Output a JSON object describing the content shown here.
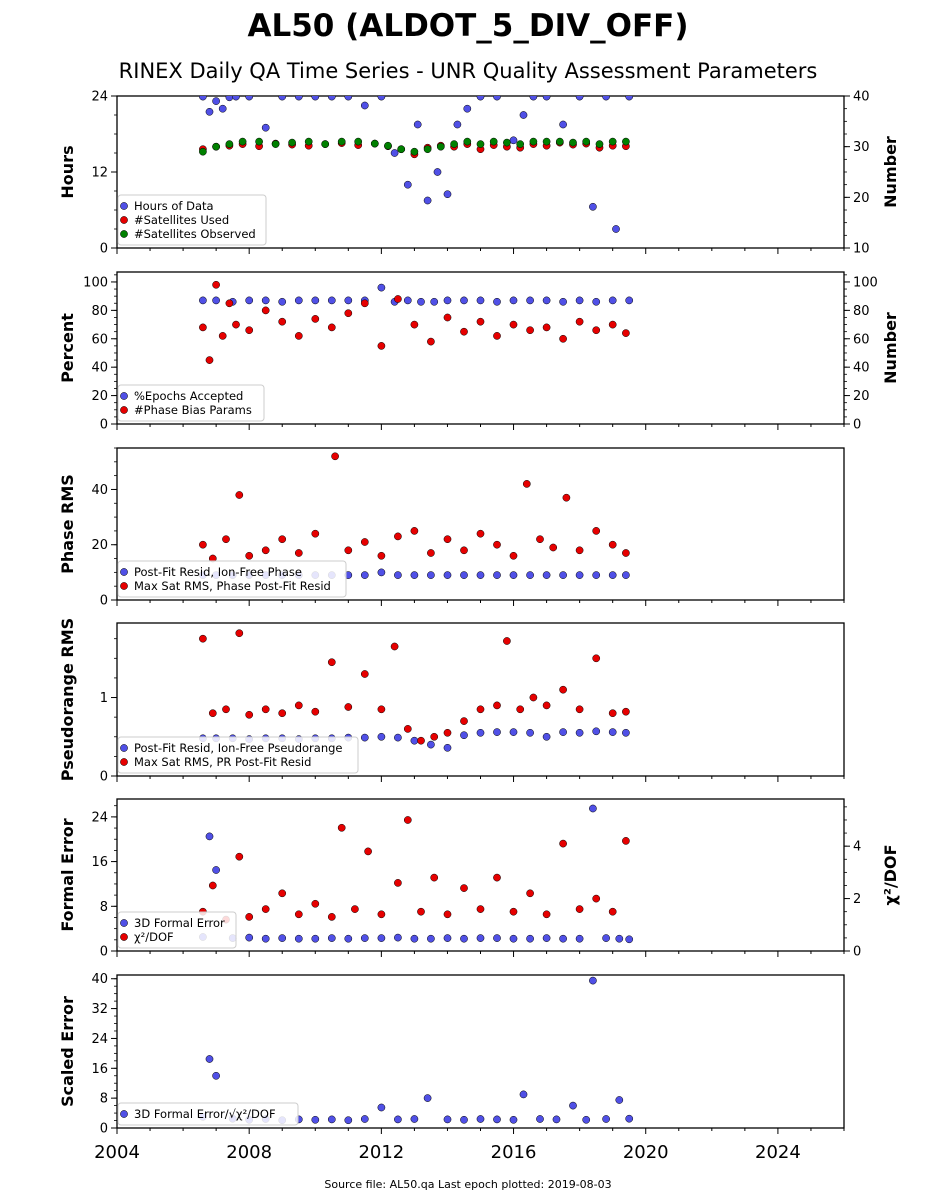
{
  "title": "AL50 (ALDOT_5_DIV_OFF)",
  "subtitle": "RINEX Daily QA Time Series - UNR Quality Assessment Parameters",
  "footer": "Source file: AL50.qa Last epoch plotted: 2019-08-03",
  "colors": {
    "blue": "#5050e6",
    "red": "#e60000",
    "green": "#008000"
  },
  "chart_data": [
    {
      "type": "scatter",
      "xlim": [
        2004.0,
        2026.0
      ],
      "xticks": [
        "2004",
        "2008",
        "2012",
        "2016",
        "2020",
        "2024"
      ],
      "ylabel": "Hours",
      "ylim": [
        0,
        24
      ],
      "yticks": [
        "0",
        "12",
        "24"
      ],
      "ylabel2": "Number",
      "ylim2": [
        10,
        40
      ],
      "yticks2": [
        "10",
        "20",
        "30",
        "40"
      ],
      "legend_placement": "lower-left",
      "series": [
        {
          "name": "Hours of Data",
          "color": "blue",
          "axis": "left",
          "x": [
            2006.6,
            2006.8,
            2007.0,
            2007.2,
            2007.4,
            2007.6,
            2008.0,
            2008.5,
            2009.0,
            2009.5,
            2010.0,
            2010.5,
            2011.0,
            2011.5,
            2012.0,
            2012.4,
            2012.8,
            2013.1,
            2013.4,
            2013.7,
            2014.0,
            2014.3,
            2014.6,
            2015.0,
            2015.5,
            2016.0,
            2016.3,
            2016.6,
            2017.0,
            2017.5,
            2018.0,
            2018.4,
            2018.8,
            2019.1,
            2019.5
          ],
          "y": [
            23.9,
            21.5,
            23.2,
            22.0,
            23.8,
            23.9,
            23.9,
            19.0,
            23.9,
            23.9,
            23.9,
            23.9,
            23.9,
            22.5,
            23.9,
            15.0,
            10.0,
            19.5,
            7.5,
            12.0,
            8.5,
            19.5,
            22.0,
            23.9,
            23.9,
            17.0,
            21.0,
            23.9,
            23.9,
            19.5,
            23.9,
            6.5,
            23.9,
            3.0,
            23.9
          ]
        },
        {
          "name": "#Satellites Used",
          "color": "red",
          "axis": "right",
          "x": [
            2006.6,
            2007.0,
            2007.4,
            2007.8,
            2008.3,
            2008.8,
            2009.3,
            2009.8,
            2010.3,
            2010.8,
            2011.3,
            2011.8,
            2012.2,
            2012.6,
            2013.0,
            2013.4,
            2013.8,
            2014.2,
            2014.6,
            2015.0,
            2015.4,
            2015.8,
            2016.2,
            2016.6,
            2017.0,
            2017.4,
            2017.8,
            2018.2,
            2018.6,
            2019.0,
            2019.4
          ],
          "y": [
            29.5,
            30.0,
            30.2,
            30.5,
            30.1,
            30.6,
            30.4,
            30.2,
            30.5,
            30.7,
            30.3,
            30.6,
            30.1,
            29.5,
            28.5,
            29.8,
            30.2,
            30.0,
            30.5,
            29.5,
            30.3,
            30.0,
            29.8,
            30.5,
            30.2,
            30.8,
            30.4,
            30.6,
            29.8,
            30.2,
            30.1
          ]
        },
        {
          "name": "#Satellites Observed",
          "color": "green",
          "axis": "right",
          "x": [
            2006.6,
            2007.0,
            2007.4,
            2007.8,
            2008.3,
            2008.8,
            2009.3,
            2009.8,
            2010.3,
            2010.8,
            2011.3,
            2011.8,
            2012.2,
            2012.6,
            2013.0,
            2013.4,
            2013.8,
            2014.2,
            2014.6,
            2015.0,
            2015.4,
            2015.8,
            2016.2,
            2016.6,
            2017.0,
            2017.4,
            2017.8,
            2018.2,
            2018.6,
            2019.0,
            2019.4
          ],
          "y": [
            29.0,
            30.0,
            30.5,
            31.0,
            31.0,
            30.5,
            30.8,
            31.0,
            30.5,
            31.0,
            31.0,
            30.6,
            30.2,
            29.5,
            29.0,
            29.5,
            30.0,
            30.5,
            31.0,
            30.5,
            31.0,
            30.8,
            30.5,
            31.0,
            31.0,
            31.0,
            30.8,
            31.0,
            30.5,
            31.0,
            31.0
          ]
        }
      ]
    },
    {
      "type": "scatter",
      "xlim": [
        2004.0,
        2026.0
      ],
      "ylabel": "Percent",
      "ylim": [
        0,
        107
      ],
      "yticks": [
        "0",
        "20",
        "40",
        "60",
        "80",
        "100"
      ],
      "ylabel2": "Number",
      "ylim2": [
        0,
        107
      ],
      "yticks2": [
        "0",
        "20",
        "40",
        "60",
        "80",
        "100"
      ],
      "legend_placement": "lower-left",
      "series": [
        {
          "name": "%Epochs Accepted",
          "color": "blue",
          "axis": "left",
          "x": [
            2006.6,
            2007.0,
            2007.5,
            2008.0,
            2008.5,
            2009.0,
            2009.5,
            2010.0,
            2010.5,
            2011.0,
            2011.5,
            2012.0,
            2012.4,
            2012.8,
            2013.2,
            2013.6,
            2014.0,
            2014.5,
            2015.0,
            2015.5,
            2016.0,
            2016.5,
            2017.0,
            2017.5,
            2018.0,
            2018.5,
            2019.0,
            2019.5
          ],
          "y": [
            87,
            87,
            86,
            87,
            87,
            86,
            87,
            87,
            87,
            87,
            87,
            96,
            86,
            87,
            86,
            86,
            87,
            87,
            87,
            86,
            87,
            87,
            87,
            86,
            87,
            86,
            87,
            87
          ]
        },
        {
          "name": "#Phase Bias Params",
          "color": "red",
          "axis": "right",
          "x": [
            2006.6,
            2006.8,
            2007.0,
            2007.2,
            2007.4,
            2007.6,
            2008.0,
            2008.5,
            2009.0,
            2009.5,
            2010.0,
            2010.5,
            2011.0,
            2011.5,
            2012.0,
            2012.5,
            2013.0,
            2013.5,
            2014.0,
            2014.5,
            2015.0,
            2015.5,
            2016.0,
            2016.5,
            2017.0,
            2017.5,
            2018.0,
            2018.5,
            2019.0,
            2019.4
          ],
          "y": [
            68,
            45,
            98,
            62,
            85,
            70,
            66,
            80,
            72,
            62,
            74,
            68,
            78,
            85,
            55,
            88,
            70,
            58,
            75,
            65,
            72,
            62,
            70,
            66,
            68,
            60,
            72,
            66,
            70,
            64
          ]
        }
      ]
    },
    {
      "type": "scatter",
      "xlim": [
        2004.0,
        2026.0
      ],
      "ylabel": "Phase RMS",
      "ylim": [
        0,
        55
      ],
      "yticks": [
        "0",
        "20",
        "40"
      ],
      "legend_placement": "lower-left",
      "series": [
        {
          "name": "Post-Fit Resid, Ion-Free Phase",
          "color": "blue",
          "axis": "left",
          "x": [
            2006.6,
            2007.0,
            2007.5,
            2008.0,
            2008.5,
            2009.0,
            2009.5,
            2010.0,
            2010.5,
            2011.0,
            2011.5,
            2012.0,
            2012.5,
            2013.0,
            2013.5,
            2014.0,
            2014.5,
            2015.0,
            2015.5,
            2016.0,
            2016.5,
            2017.0,
            2017.5,
            2018.0,
            2018.5,
            2019.0,
            2019.4
          ],
          "y": [
            9,
            9,
            9,
            9,
            9,
            9,
            9,
            9,
            9,
            9,
            9,
            10,
            9,
            9,
            9,
            9,
            9,
            9,
            9,
            9,
            9,
            9,
            9,
            9,
            9,
            9,
            9
          ]
        },
        {
          "name": "Max Sat RMS, Phase Post-Fit Resid",
          "color": "red",
          "axis": "left",
          "x": [
            2006.6,
            2006.9,
            2007.3,
            2007.7,
            2008.0,
            2008.5,
            2009.0,
            2009.5,
            2010.0,
            2010.6,
            2011.0,
            2011.5,
            2012.0,
            2012.5,
            2013.0,
            2013.5,
            2014.0,
            2014.5,
            2015.0,
            2015.5,
            2016.0,
            2016.4,
            2016.8,
            2017.2,
            2017.6,
            2018.0,
            2018.5,
            2019.0,
            2019.4
          ],
          "y": [
            20,
            15,
            22,
            38,
            16,
            18,
            22,
            17,
            24,
            52,
            18,
            21,
            16,
            23,
            25,
            17,
            22,
            18,
            24,
            20,
            16,
            42,
            22,
            19,
            37,
            18,
            25,
            20,
            17
          ]
        }
      ]
    },
    {
      "type": "scatter",
      "xlim": [
        2004.0,
        2026.0
      ],
      "ylabel": "Pseudorange RMS",
      "ylim": [
        0,
        1.95
      ],
      "yticks": [
        "0",
        "1"
      ],
      "legend_placement": "lower-left",
      "series": [
        {
          "name": "Post-Fit Resid, Ion-Free Pseudorange",
          "color": "blue",
          "axis": "left",
          "x": [
            2006.6,
            2007.0,
            2007.5,
            2008.0,
            2008.5,
            2009.0,
            2009.5,
            2010.0,
            2010.5,
            2011.0,
            2011.5,
            2012.0,
            2012.5,
            2013.0,
            2013.5,
            2014.0,
            2014.5,
            2015.0,
            2015.5,
            2016.0,
            2016.5,
            2017.0,
            2017.5,
            2018.0,
            2018.5,
            2019.0,
            2019.4
          ],
          "y": [
            0.48,
            0.48,
            0.48,
            0.47,
            0.48,
            0.48,
            0.47,
            0.48,
            0.48,
            0.49,
            0.49,
            0.5,
            0.49,
            0.45,
            0.4,
            0.36,
            0.52,
            0.55,
            0.56,
            0.56,
            0.55,
            0.5,
            0.56,
            0.55,
            0.57,
            0.56,
            0.55
          ]
        },
        {
          "name": "Max Sat RMS, PR Post-Fit Resid",
          "color": "red",
          "axis": "left",
          "x": [
            2006.6,
            2006.9,
            2007.3,
            2007.7,
            2008.0,
            2008.5,
            2009.0,
            2009.5,
            2010.0,
            2010.5,
            2011.0,
            2011.5,
            2012.0,
            2012.4,
            2012.8,
            2013.2,
            2013.6,
            2014.0,
            2014.5,
            2015.0,
            2015.5,
            2015.8,
            2016.2,
            2016.6,
            2017.0,
            2017.5,
            2018.0,
            2018.5,
            2019.0,
            2019.4
          ],
          "y": [
            1.75,
            0.8,
            0.85,
            1.82,
            0.78,
            0.85,
            0.8,
            0.9,
            0.82,
            1.45,
            0.88,
            1.3,
            0.85,
            1.65,
            0.6,
            0.45,
            0.5,
            0.55,
            0.7,
            0.85,
            0.9,
            1.72,
            0.85,
            1.0,
            0.9,
            1.1,
            0.85,
            1.5,
            0.8,
            0.82
          ]
        }
      ]
    },
    {
      "type": "scatter",
      "xlim": [
        2004.0,
        2026.0
      ],
      "ylabel": "Formal Error",
      "ylim": [
        0,
        27.2
      ],
      "yticks": [
        "0",
        "8",
        "16",
        "24"
      ],
      "ylabel2": "χ²/DOF",
      "ylim2": [
        0,
        5.8
      ],
      "yticks2": [
        "0",
        "2",
        "4"
      ],
      "legend_placement": "lower-left",
      "series": [
        {
          "name": "3D Formal Error",
          "color": "blue",
          "axis": "left",
          "x": [
            2006.6,
            2006.8,
            2007.0,
            2007.5,
            2008.0,
            2008.5,
            2009.0,
            2009.5,
            2010.0,
            2010.5,
            2011.0,
            2011.5,
            2012.0,
            2012.5,
            2013.0,
            2013.5,
            2014.0,
            2014.5,
            2015.0,
            2015.5,
            2016.0,
            2016.5,
            2017.0,
            2017.5,
            2018.0,
            2018.4,
            2018.8,
            2019.2,
            2019.5
          ],
          "y": [
            2.5,
            20.5,
            14.5,
            2.3,
            2.4,
            2.2,
            2.3,
            2.2,
            2.2,
            2.3,
            2.2,
            2.3,
            2.3,
            2.4,
            2.2,
            2.2,
            2.3,
            2.2,
            2.3,
            2.3,
            2.2,
            2.2,
            2.3,
            2.2,
            2.2,
            25.5,
            2.3,
            2.2,
            2.1
          ]
        },
        {
          "name": "χ²/DOF",
          "color": "red",
          "axis": "right",
          "x": [
            2006.6,
            2006.9,
            2007.3,
            2007.7,
            2008.0,
            2008.5,
            2009.0,
            2009.5,
            2010.0,
            2010.5,
            2010.8,
            2011.2,
            2011.6,
            2012.0,
            2012.5,
            2012.8,
            2013.2,
            2013.6,
            2014.0,
            2014.5,
            2015.0,
            2015.5,
            2016.0,
            2016.5,
            2017.0,
            2017.5,
            2018.0,
            2018.5,
            2019.0,
            2019.4
          ],
          "y": [
            1.5,
            2.5,
            1.2,
            3.6,
            1.3,
            1.6,
            2.2,
            1.4,
            1.8,
            1.3,
            4.7,
            1.6,
            3.8,
            1.4,
            2.6,
            5.0,
            1.5,
            2.8,
            1.4,
            2.4,
            1.6,
            2.8,
            1.5,
            2.2,
            1.4,
            4.1,
            1.6,
            2.0,
            1.5,
            4.2
          ]
        }
      ]
    },
    {
      "type": "scatter",
      "xlim": [
        2004.0,
        2026.0
      ],
      "xticks": [
        "2004",
        "2008",
        "2012",
        "2016",
        "2020",
        "2024"
      ],
      "ylabel": "Scaled Error",
      "ylim": [
        0,
        41
      ],
      "yticks": [
        "0",
        "8",
        "16",
        "24",
        "32",
        "40"
      ],
      "legend_placement": "lower-left",
      "series": [
        {
          "name": "3D Formal Error/√χ²/DOF",
          "color": "blue",
          "axis": "left",
          "x": [
            2006.6,
            2006.8,
            2007.0,
            2007.5,
            2008.0,
            2008.5,
            2009.0,
            2009.5,
            2010.0,
            2010.5,
            2011.0,
            2011.5,
            2012.0,
            2012.5,
            2013.0,
            2013.4,
            2014.0,
            2014.5,
            2015.0,
            2015.5,
            2016.0,
            2016.3,
            2016.8,
            2017.3,
            2017.8,
            2018.2,
            2018.4,
            2018.8,
            2019.2,
            2019.5
          ],
          "y": [
            3.0,
            18.5,
            14.0,
            2.5,
            2.2,
            2.4,
            2.1,
            2.3,
            2.2,
            2.3,
            2.1,
            2.4,
            5.5,
            2.3,
            2.4,
            8.0,
            2.3,
            2.2,
            2.4,
            2.3,
            2.2,
            9.0,
            2.4,
            2.3,
            6.0,
            2.2,
            39.5,
            2.4,
            7.5,
            2.5
          ]
        }
      ]
    }
  ]
}
